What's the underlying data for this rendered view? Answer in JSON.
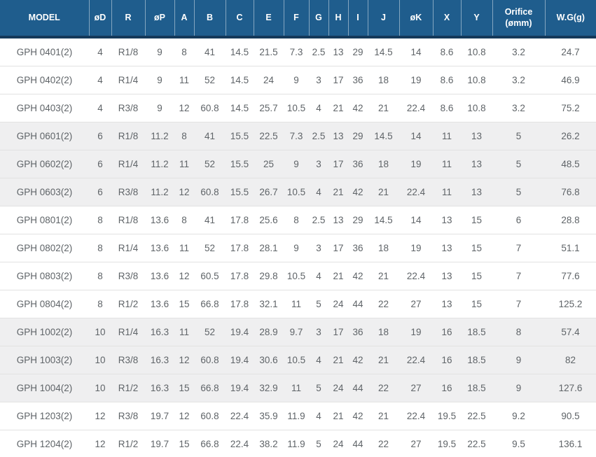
{
  "colors": {
    "header_bg": "#1f5d8d",
    "header_border": "#14395a",
    "shaded_row": "#efeff0",
    "body_text": "#5f6468",
    "row_separator": "#e2e2e2"
  },
  "table": {
    "columns": [
      "MODEL",
      "øD",
      "R",
      "øP",
      "A",
      "B",
      "C",
      "E",
      "F",
      "G",
      "H",
      "I",
      "J",
      "øK",
      "X",
      "Y",
      "Orifice (ømm)",
      "W.G(g)"
    ],
    "rows": [
      {
        "model": "GPH 0401(2)",
        "shaded": false,
        "values": [
          "4",
          "R1/8",
          "9",
          "8",
          "41",
          "14.5",
          "21.5",
          "7.3",
          "2.5",
          "13",
          "29",
          "14.5",
          "14",
          "8.6",
          "10.8",
          "3.2",
          "24.7"
        ]
      },
      {
        "model": "GPH 0402(2)",
        "shaded": false,
        "values": [
          "4",
          "R1/4",
          "9",
          "11",
          "52",
          "14.5",
          "24",
          "9",
          "3",
          "17",
          "36",
          "18",
          "19",
          "8.6",
          "10.8",
          "3.2",
          "46.9"
        ]
      },
      {
        "model": "GPH 0403(2)",
        "shaded": false,
        "values": [
          "4",
          "R3/8",
          "9",
          "12",
          "60.8",
          "14.5",
          "25.7",
          "10.5",
          "4",
          "21",
          "42",
          "21",
          "22.4",
          "8.6",
          "10.8",
          "3.2",
          "75.2"
        ]
      },
      {
        "model": "GPH 0601(2)",
        "shaded": true,
        "values": [
          "6",
          "R1/8",
          "11.2",
          "8",
          "41",
          "15.5",
          "22.5",
          "7.3",
          "2.5",
          "13",
          "29",
          "14.5",
          "14",
          "11",
          "13",
          "5",
          "26.2"
        ]
      },
      {
        "model": "GPH 0602(2)",
        "shaded": true,
        "values": [
          "6",
          "R1/4",
          "11.2",
          "11",
          "52",
          "15.5",
          "25",
          "9",
          "3",
          "17",
          "36",
          "18",
          "19",
          "11",
          "13",
          "5",
          "48.5"
        ]
      },
      {
        "model": "GPH 0603(2)",
        "shaded": true,
        "values": [
          "6",
          "R3/8",
          "11.2",
          "12",
          "60.8",
          "15.5",
          "26.7",
          "10.5",
          "4",
          "21",
          "42",
          "21",
          "22.4",
          "11",
          "13",
          "5",
          "76.8"
        ]
      },
      {
        "model": "GPH 0801(2)",
        "shaded": false,
        "values": [
          "8",
          "R1/8",
          "13.6",
          "8",
          "41",
          "17.8",
          "25.6",
          "8",
          "2.5",
          "13",
          "29",
          "14.5",
          "14",
          "13",
          "15",
          "6",
          "28.8"
        ]
      },
      {
        "model": "GPH 0802(2)",
        "shaded": false,
        "values": [
          "8",
          "R1/4",
          "13.6",
          "11",
          "52",
          "17.8",
          "28.1",
          "9",
          "3",
          "17",
          "36",
          "18",
          "19",
          "13",
          "15",
          "7",
          "51.1"
        ]
      },
      {
        "model": "GPH 0803(2)",
        "shaded": false,
        "values": [
          "8",
          "R3/8",
          "13.6",
          "12",
          "60.5",
          "17.8",
          "29.8",
          "10.5",
          "4",
          "21",
          "42",
          "21",
          "22.4",
          "13",
          "15",
          "7",
          "77.6"
        ]
      },
      {
        "model": "GPH 0804(2)",
        "shaded": false,
        "values": [
          "8",
          "R1/2",
          "13.6",
          "15",
          "66.8",
          "17.8",
          "32.1",
          "11",
          "5",
          "24",
          "44",
          "22",
          "27",
          "13",
          "15",
          "7",
          "125.2"
        ]
      },
      {
        "model": "GPH 1002(2)",
        "shaded": true,
        "values": [
          "10",
          "R1/4",
          "16.3",
          "11",
          "52",
          "19.4",
          "28.9",
          "9.7",
          "3",
          "17",
          "36",
          "18",
          "19",
          "16",
          "18.5",
          "8",
          "57.4"
        ]
      },
      {
        "model": "GPH 1003(2)",
        "shaded": true,
        "values": [
          "10",
          "R3/8",
          "16.3",
          "12",
          "60.8",
          "19.4",
          "30.6",
          "10.5",
          "4",
          "21",
          "42",
          "21",
          "22.4",
          "16",
          "18.5",
          "9",
          "82"
        ]
      },
      {
        "model": "GPH 1004(2)",
        "shaded": true,
        "values": [
          "10",
          "R1/2",
          "16.3",
          "15",
          "66.8",
          "19.4",
          "32.9",
          "11",
          "5",
          "24",
          "44",
          "22",
          "27",
          "16",
          "18.5",
          "9",
          "127.6"
        ]
      },
      {
        "model": "GPH 1203(2)",
        "shaded": false,
        "values": [
          "12",
          "R3/8",
          "19.7",
          "12",
          "60.8",
          "22.4",
          "35.9",
          "11.9",
          "4",
          "21",
          "42",
          "21",
          "22.4",
          "19.5",
          "22.5",
          "9.2",
          "90.5"
        ]
      },
      {
        "model": "GPH 1204(2)",
        "shaded": false,
        "values": [
          "12",
          "R1/2",
          "19.7",
          "15",
          "66.8",
          "22.4",
          "38.2",
          "11.9",
          "5",
          "24",
          "44",
          "22",
          "27",
          "19.5",
          "22.5",
          "9.5",
          "136.1"
        ]
      }
    ]
  }
}
